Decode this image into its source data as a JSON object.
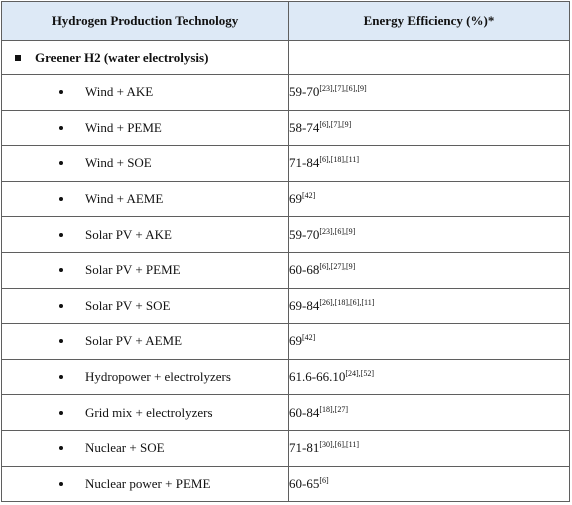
{
  "header": {
    "technology": "Hydrogen Production Technology",
    "efficiency": "Energy Efficiency (%)*"
  },
  "group": {
    "label": "Greener H2 (water electrolysis)",
    "efficiency": ""
  },
  "rows": [
    {
      "tech": "Wind + AKE",
      "value": "59-70",
      "refs": "[23],[7],[6],[9]"
    },
    {
      "tech": "Wind + PEME",
      "value": "58-74",
      "refs": "[6],[7],[9]"
    },
    {
      "tech": "Wind + SOE",
      "value": "71-84",
      "refs": "[6],[18],[11]"
    },
    {
      "tech": "Wind + AEME",
      "value": "69",
      "refs": "[42]"
    },
    {
      "tech": "Solar PV + AKE",
      "value": "59-70",
      "refs": "[23],[6],[9]"
    },
    {
      "tech": "Solar PV + PEME",
      "value": "60-68",
      "refs": "[6],[27],[9]"
    },
    {
      "tech": "Solar PV + SOE",
      "value": "69-84",
      "refs": "[26],[18],[6],[11]"
    },
    {
      "tech": "Solar PV + AEME",
      "value": "69",
      "refs": "[42]"
    },
    {
      "tech": "Hydropower + electrolyzers",
      "value": "61.6-66.10",
      "refs": "[24],[52]"
    },
    {
      "tech": "Grid mix + electrolyzers",
      "value": "60-84",
      "refs": "[18],[27]"
    },
    {
      "tech": "Nuclear + SOE",
      "value": "71-81",
      "refs": "[30],[6],[11]"
    },
    {
      "tech": "Nuclear power + PEME",
      "value": "60-65",
      "refs": "[6]"
    }
  ]
}
